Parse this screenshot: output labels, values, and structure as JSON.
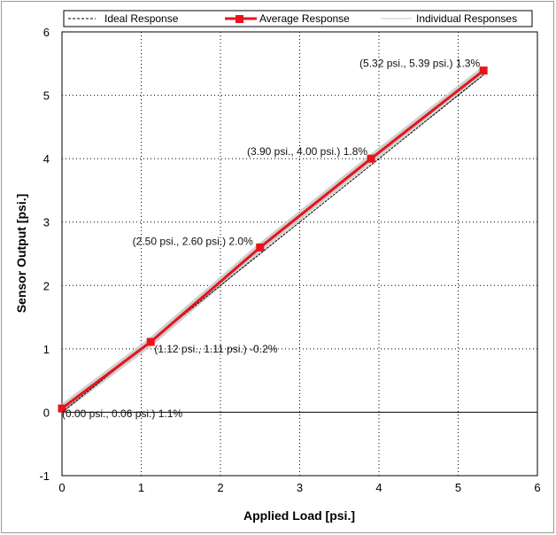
{
  "chart_data": {
    "type": "line",
    "xlabel": "Applied Load [psi.]",
    "ylabel": "Sensor Output [psi.]",
    "xlim": [
      0,
      6
    ],
    "ylim": [
      -1,
      6
    ],
    "xticks": [
      "0",
      "1",
      "2",
      "3",
      "4",
      "5",
      "6"
    ],
    "yticks": [
      "-1",
      "0",
      "1",
      "2",
      "3",
      "4",
      "5",
      "6"
    ],
    "grid": "dotted",
    "legend_position": "top",
    "series": [
      {
        "name": "Ideal Response",
        "style": "dashed",
        "color": "#000000",
        "x": [
          0,
          5.32
        ],
        "y": [
          0,
          5.32
        ]
      },
      {
        "name": "Average Response",
        "style": "solid-square-markers",
        "color": "#e8141c",
        "x": [
          0.0,
          1.12,
          2.5,
          3.9,
          5.32
        ],
        "y": [
          0.06,
          1.11,
          2.6,
          4.0,
          5.39
        ]
      },
      {
        "name": "Individual Responses",
        "style": "thin-band",
        "color": "#c8c8c8",
        "x": [
          0.0,
          1.12,
          2.5,
          3.9,
          5.32
        ],
        "y": [
          0.06,
          1.11,
          2.6,
          4.0,
          5.39
        ]
      }
    ],
    "annotations": [
      "(0.00 psi., 0.06 psi.) 1.1%",
      "(1.12 psi., 1.11 psi.) -0.2%",
      "(2.50 psi., 2.60 psi.) 2.0%",
      "(3.90 psi., 4.00 psi.) 1.8%",
      "(5.32 psi., 5.39 psi.) 1.3%"
    ]
  }
}
